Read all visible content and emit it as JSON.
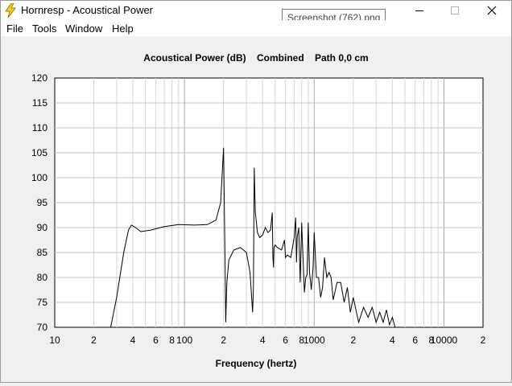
{
  "window": {
    "title": "Hornresp - Acoustical Power",
    "tooltip": "Screenshot (762).png"
  },
  "menu": [
    "File",
    "Tools",
    "Window",
    "Help"
  ],
  "chart_data": {
    "type": "line",
    "title": "Acoustical Power (dB)    Combined    Path 0,0 cm",
    "xlabel": "Frequency (hertz)",
    "ylabel": "",
    "xscale": "log",
    "xlim": [
      10,
      20000
    ],
    "ylim": [
      70,
      120
    ],
    "grid": true,
    "x_tick_labels": [
      {
        "v": 10,
        "t": "10"
      },
      {
        "v": 20,
        "t": "2"
      },
      {
        "v": 40,
        "t": "4"
      },
      {
        "v": 60,
        "t": "6"
      },
      {
        "v": 80,
        "t": "8"
      },
      {
        "v": 100,
        "t": "100"
      },
      {
        "v": 200,
        "t": "2"
      },
      {
        "v": 400,
        "t": "4"
      },
      {
        "v": 600,
        "t": "6"
      },
      {
        "v": 800,
        "t": "8"
      },
      {
        "v": 1000,
        "t": "1000"
      },
      {
        "v": 2000,
        "t": "2"
      },
      {
        "v": 4000,
        "t": "4"
      },
      {
        "v": 6000,
        "t": "6"
      },
      {
        "v": 8000,
        "t": "8"
      },
      {
        "v": 10000,
        "t": "10000"
      },
      {
        "v": 20000,
        "t": "2"
      }
    ],
    "y_ticks": [
      120,
      115,
      110,
      105,
      100,
      95,
      90,
      85,
      80,
      75,
      70
    ],
    "series": [
      {
        "name": "",
        "x": [
          27,
          30,
          34,
          37,
          39,
          42,
          46,
          55,
          70,
          90,
          120,
          150,
          175,
          190,
          200,
          205,
          208,
          212,
          220,
          240,
          270,
          300,
          320,
          335,
          340,
          345,
          352,
          365,
          380,
          400,
          420,
          440,
          460,
          475,
          480,
          485,
          490,
          500,
          520,
          560,
          590,
          600,
          620,
          660,
          700,
          720,
          730,
          740,
          760,
          780,
          800,
          820,
          840,
          860,
          880,
          900,
          920,
          950,
          980,
          1000,
          1040,
          1080,
          1120,
          1160,
          1200,
          1250,
          1300,
          1350,
          1400,
          1500,
          1600,
          1700,
          1800,
          1900,
          2000,
          2200,
          2400,
          2600,
          2800,
          3000,
          3200,
          3400,
          3600,
          3800,
          4000,
          4200
        ],
        "y": [
          70,
          76,
          85,
          89.5,
          90.5,
          90,
          89.2,
          89.5,
          90.2,
          90.6,
          90.5,
          90.6,
          91.5,
          95,
          106,
          85,
          71,
          79,
          83.5,
          85.5,
          86,
          85,
          81,
          73,
          78,
          102,
          93,
          89,
          88,
          88.5,
          90,
          89,
          89.5,
          93,
          84,
          82,
          86,
          86.5,
          86,
          85.5,
          87.5,
          84,
          84.5,
          84,
          88,
          92,
          83,
          88,
          90,
          79,
          91,
          84,
          77,
          80,
          80.5,
          91,
          81,
          77.5,
          82,
          89,
          80,
          80,
          76,
          78,
          84,
          80,
          81,
          80,
          75.5,
          79,
          79,
          75,
          78,
          73,
          76,
          71,
          74,
          72,
          74,
          71,
          73,
          71,
          73.5,
          70.5,
          72,
          70
        ]
      }
    ]
  }
}
